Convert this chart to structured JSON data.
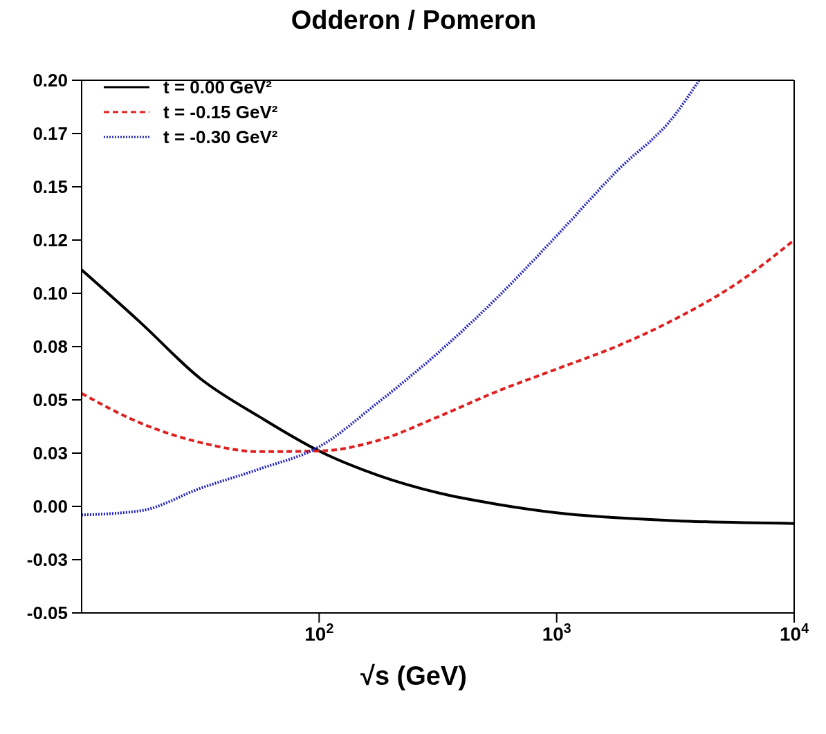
{
  "chart_data": {
    "type": "line",
    "title": "Odderon / Pomeron",
    "xlabel": "√s (GeV)",
    "log": "x",
    "grid": false,
    "legend": "top left",
    "marker": "none",
    "xlim": [
      10,
      10000
    ],
    "xticks": [
      {
        "value": 100,
        "label": "10$^{2}$"
      },
      {
        "value": 1000,
        "label": "10$^{3}$"
      },
      {
        "value": 10000,
        "label": "10$^{4}$"
      }
    ],
    "ylim": [
      -0.05,
      0.2
    ],
    "yticks": [
      {
        "value": -0.05,
        "label": "-0.05"
      },
      {
        "value": -0.025,
        "label": "-0.03"
      },
      {
        "value": 0,
        "label": "0.00"
      },
      {
        "value": 0.025,
        "label": "0.03"
      },
      {
        "value": 0.05,
        "label": "0.05"
      },
      {
        "value": 0.075,
        "label": "0.08"
      },
      {
        "value": 0.1,
        "label": "0.10"
      },
      {
        "value": 0.125,
        "label": "0.12"
      },
      {
        "value": 0.15,
        "label": "0.15"
      },
      {
        "value": 0.175,
        "label": "0.17"
      },
      {
        "value": 0.2,
        "label": "0.20"
      }
    ],
    "series": [
      {
        "name": "t =  0.00 GeV²",
        "color": "#000000",
        "line_style": "solid",
        "x": [
          10,
          17.8,
          31.6,
          56.2,
          100,
          178,
          316,
          562,
          1000,
          3162,
          10000
        ],
        "values": [
          0.111,
          0.086,
          0.06,
          0.042,
          0.026,
          0.0145,
          0.0064,
          0.001,
          -0.003,
          -0.0067,
          -0.008
        ]
      },
      {
        "name": "t = -0.15 GeV²",
        "color": "#e02020",
        "line_style": "dashed",
        "x": [
          10,
          17.8,
          31.6,
          56.2,
          100,
          178,
          316,
          562,
          1000,
          1778,
          3162,
          5623,
          10000
        ],
        "values": [
          0.053,
          0.039,
          0.03,
          0.0257,
          0.026,
          0.031,
          0.042,
          0.054,
          0.0645,
          0.075,
          0.088,
          0.104,
          0.125
        ]
      },
      {
        "name": "t = -0.30 GeV²",
        "color": "#2020c0",
        "line_style": "dotted",
        "x": [
          10,
          17.8,
          31.6,
          56.2,
          100,
          178,
          316,
          562,
          1000,
          1778,
          3162,
          3981
        ],
        "values": [
          -0.004,
          -0.002,
          0.0085,
          0.0176,
          0.028,
          0.049,
          0.072,
          0.098,
          0.127,
          0.157,
          0.184,
          0.2
        ]
      }
    ]
  }
}
